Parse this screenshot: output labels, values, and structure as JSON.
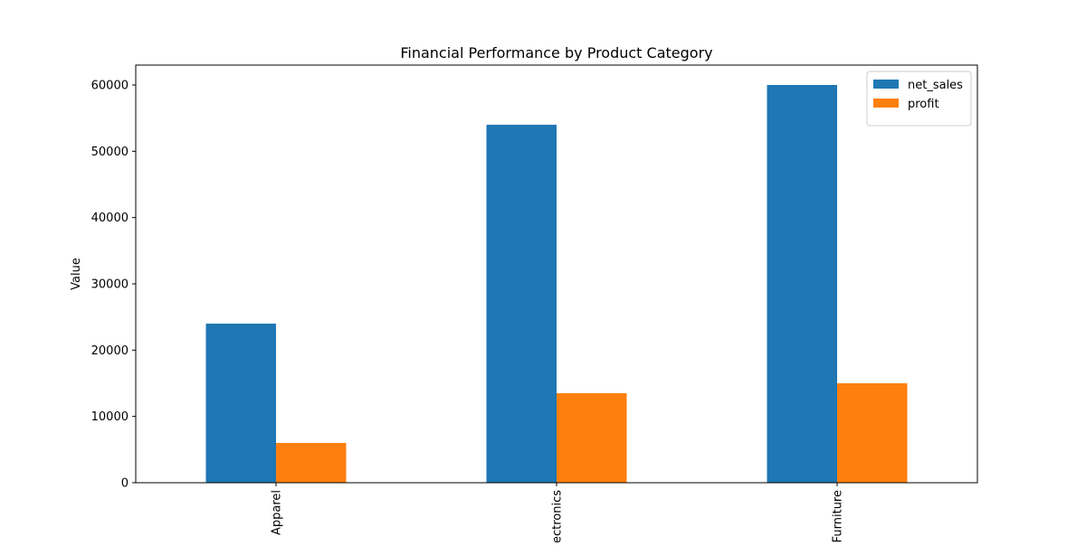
{
  "chart_data": {
    "type": "bar",
    "title": "Financial Performance by Product Category",
    "xlabel": "",
    "ylabel": "Value",
    "categories": [
      "Apparel",
      "Electronics",
      "Furniture"
    ],
    "series": [
      {
        "name": "net_sales",
        "values": [
          24000,
          54000,
          60000
        ],
        "color": "#1f77b4"
      },
      {
        "name": "profit",
        "values": [
          6000,
          13500,
          15000
        ],
        "color": "#ff7f0e"
      }
    ],
    "ylim": [
      0,
      63000
    ],
    "yticks": [
      0,
      10000,
      20000,
      30000,
      40000,
      50000,
      60000
    ],
    "ytick_labels": [
      "0",
      "10000",
      "20000",
      "30000",
      "40000",
      "50000",
      "60000"
    ],
    "grid": false,
    "legend_position": "top-right",
    "xtick_rotation": "vertical"
  }
}
